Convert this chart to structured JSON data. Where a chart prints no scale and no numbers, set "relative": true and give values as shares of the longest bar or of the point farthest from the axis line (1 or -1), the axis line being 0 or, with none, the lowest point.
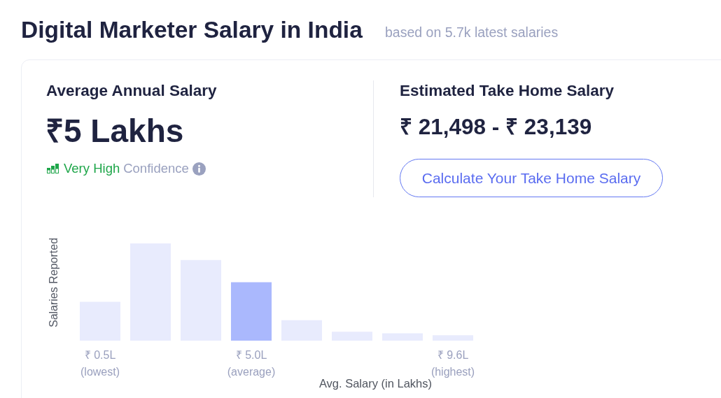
{
  "chart_data": {
    "type": "bar",
    "title": "Digital Marketer Salary in India",
    "subtitle": "based on 5.7k latest salaries",
    "xlabel": "Avg. Salary (in Lakhs)",
    "ylabel": "Salaries Reported",
    "categories": [
      "₹ 0.5L\n(lowest)",
      null,
      null,
      "₹ 5.0L\n(average)",
      null,
      null,
      null,
      "₹ 9.6L\n(highest)"
    ],
    "values": [
      0.4,
      1,
      0.83,
      0.6,
      0.21,
      0.091,
      0.076,
      0.056
    ],
    "colors": [
      "#e8ebfd",
      "#e8ebfd",
      "#e8ebfd",
      "#aab8fd",
      "#e8ebfd",
      "#e8ebfd",
      "#e8ebfd",
      "#e8ebfd"
    ],
    "relative": true,
    "annotations": [
      "Average Annual Salary",
      "₹5 Lakhs",
      "Very High",
      "Confidence",
      "Estimated Take Home Salary",
      "₹ 21,498 - ₹ 23,139",
      "Calculate Your Take Home Salary"
    ]
  }
}
